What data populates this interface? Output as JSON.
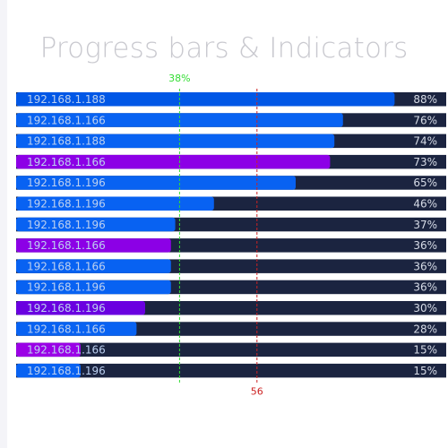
{
  "title": "Progress bars & Indicators",
  "chart_data": {
    "type": "bar",
    "orientation": "horizontal",
    "xlim": [
      0,
      100
    ],
    "categories": [
      "192.168.1.188",
      "192.168.1.166",
      "192.168.1.188",
      "192.168.1.166",
      "192.168.1.196",
      "192.168.1.196",
      "192.168.1.196",
      "192.168.1.166",
      "192.168.1.166",
      "192.168.1.196",
      "192.168.1.196",
      "192.168.1.166",
      "192.168.1.166",
      "192.168.1.196"
    ],
    "values": [
      88,
      76,
      74,
      73,
      65,
      46,
      37,
      36,
      36,
      36,
      30,
      28,
      15,
      15
    ],
    "value_labels": [
      "88%",
      "76%",
      "74%",
      "73%",
      "65%",
      "46%",
      "37%",
      "36%",
      "36%",
      "36%",
      "30%",
      "28%",
      "15%",
      "15%"
    ],
    "bar_colors": [
      "#0057e6",
      "#0862f2",
      "#0862f2",
      "#8c00e6",
      "#0862f2",
      "#0862f2",
      "#0862f2",
      "#8c00e6",
      "#0862f2",
      "#0862f2",
      "#6a00e0",
      "#0862f2",
      "#9b00e6",
      "#0862f2"
    ],
    "track_color": "#1b2440",
    "markers": [
      {
        "value": 38,
        "label": "38%",
        "color": "#33dd33",
        "label_position": "top"
      },
      {
        "value": 56,
        "label": "56",
        "color": "#cc2222",
        "label_position": "bottom"
      }
    ]
  }
}
